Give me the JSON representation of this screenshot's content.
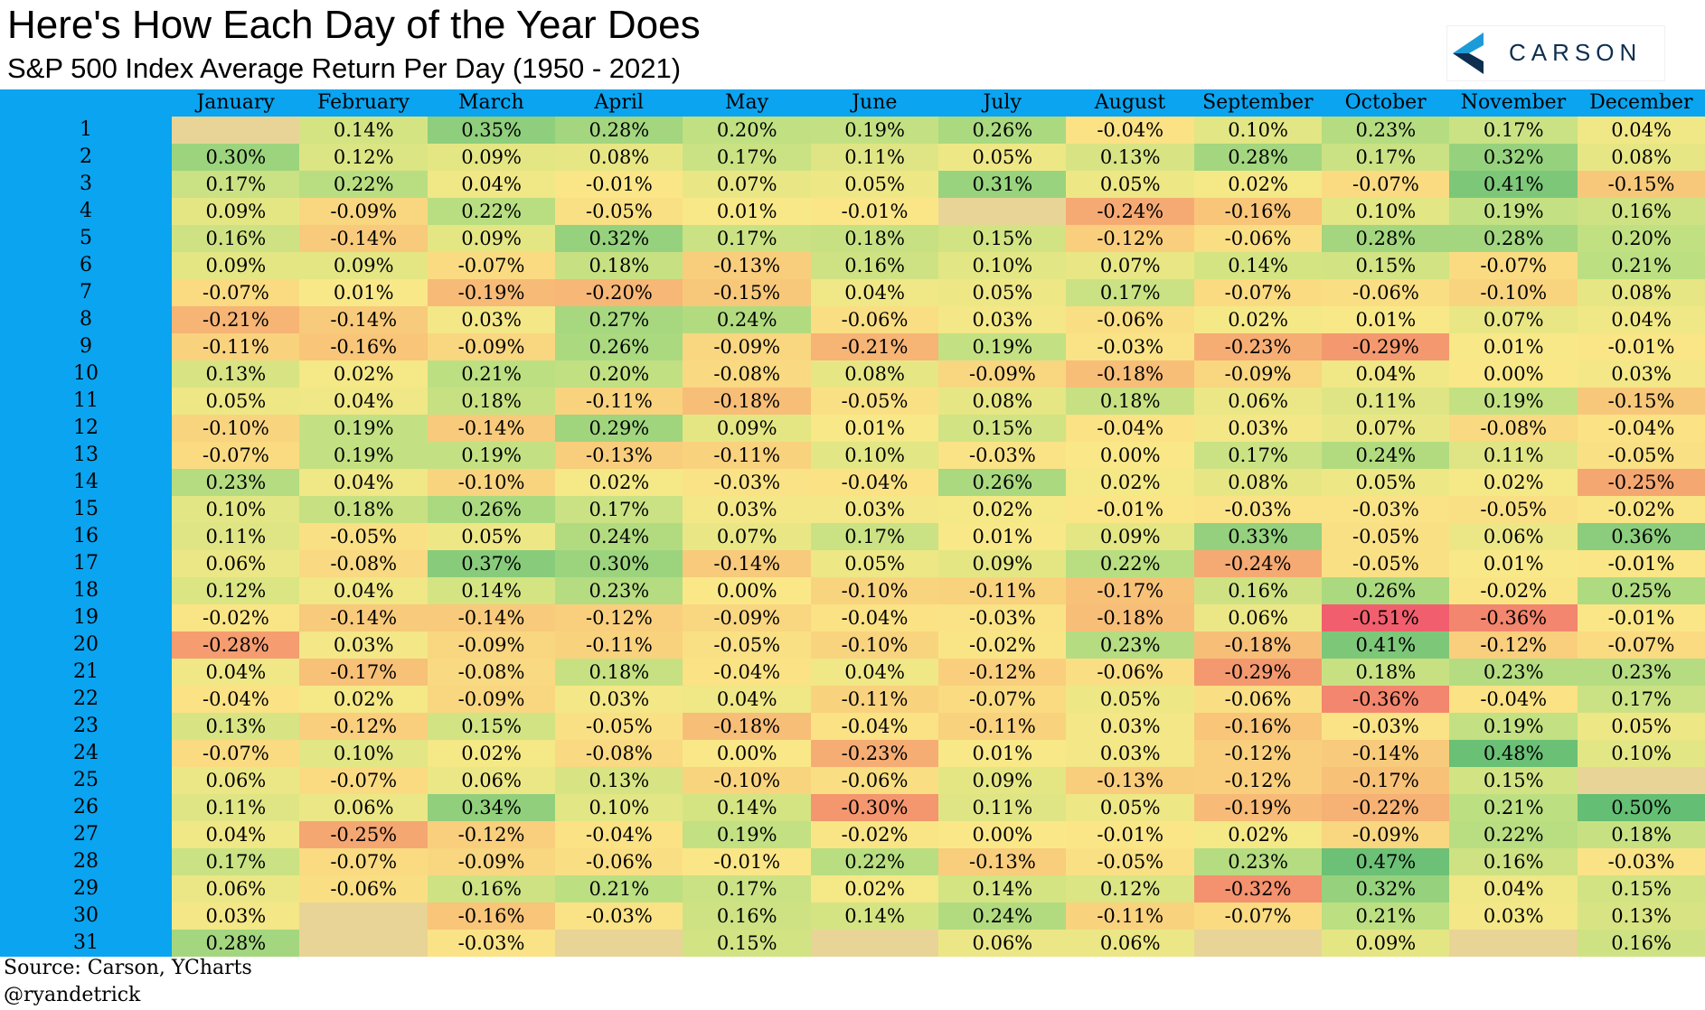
{
  "title": "Here's How Each Day of the Year Does",
  "subtitle": "S&P 500 Index Average Return Per Day (1950 - 2021)",
  "logo": {
    "text": "CARSON",
    "color": "#0e2e4f",
    "accent": "#1d9bd9"
  },
  "source": "Source: Carson, YCharts",
  "handle": "@ryandetrick",
  "chart_data": {
    "type": "heatmap",
    "title": "Here's How Each Day of the Year Does",
    "subtitle": "S&P 500 Index Average Return Per Day (1950 - 2021)",
    "value_unit": "%",
    "header_color": "#0aa4f0",
    "empty_color": "#e8d497",
    "x_categories": [
      "January",
      "February",
      "March",
      "April",
      "May",
      "June",
      "July",
      "August",
      "September",
      "October",
      "November",
      "December"
    ],
    "y_categories": [
      "1",
      "2",
      "3",
      "4",
      "5",
      "6",
      "7",
      "8",
      "9",
      "10",
      "11",
      "12",
      "13",
      "14",
      "15",
      "16",
      "17",
      "18",
      "19",
      "20",
      "21",
      "22",
      "23",
      "24",
      "25",
      "26",
      "27",
      "28",
      "29",
      "30",
      "31"
    ],
    "values": [
      [
        null,
        0.14,
        0.35,
        0.28,
        0.2,
        0.19,
        0.26,
        -0.04,
        0.1,
        0.23,
        0.17,
        0.04
      ],
      [
        0.3,
        0.12,
        0.09,
        0.08,
        0.17,
        0.11,
        0.05,
        0.13,
        0.28,
        0.17,
        0.32,
        0.08
      ],
      [
        0.17,
        0.22,
        0.04,
        -0.01,
        0.07,
        0.05,
        0.31,
        0.05,
        0.02,
        -0.07,
        0.41,
        -0.15
      ],
      [
        0.09,
        -0.09,
        0.22,
        -0.05,
        0.01,
        -0.01,
        null,
        -0.24,
        -0.16,
        0.1,
        0.19,
        0.16
      ],
      [
        0.16,
        -0.14,
        0.09,
        0.32,
        0.17,
        0.18,
        0.15,
        -0.12,
        -0.06,
        0.28,
        0.28,
        0.2
      ],
      [
        0.09,
        0.09,
        -0.07,
        0.18,
        -0.13,
        0.16,
        0.1,
        0.07,
        0.14,
        0.15,
        -0.07,
        0.21
      ],
      [
        -0.07,
        0.01,
        -0.19,
        -0.2,
        -0.15,
        0.04,
        0.05,
        0.17,
        -0.07,
        -0.06,
        -0.1,
        0.08
      ],
      [
        -0.21,
        -0.14,
        0.03,
        0.27,
        0.24,
        -0.06,
        0.03,
        -0.06,
        0.02,
        0.01,
        0.07,
        0.04
      ],
      [
        -0.11,
        -0.16,
        -0.09,
        0.26,
        -0.09,
        -0.21,
        0.19,
        -0.03,
        -0.23,
        -0.29,
        0.01,
        -0.01
      ],
      [
        0.13,
        0.02,
        0.21,
        0.2,
        -0.08,
        0.08,
        -0.09,
        -0.18,
        -0.09,
        0.04,
        0.0,
        0.03
      ],
      [
        0.05,
        0.04,
        0.18,
        -0.11,
        -0.18,
        -0.05,
        0.08,
        0.18,
        0.06,
        0.11,
        0.19,
        -0.15
      ],
      [
        -0.1,
        0.19,
        -0.14,
        0.29,
        0.09,
        0.01,
        0.15,
        -0.04,
        0.03,
        0.07,
        -0.08,
        -0.04
      ],
      [
        -0.07,
        0.19,
        0.19,
        -0.13,
        -0.11,
        0.1,
        -0.03,
        0.0,
        0.17,
        0.24,
        0.11,
        -0.05
      ],
      [
        0.23,
        0.04,
        -0.1,
        0.02,
        -0.03,
        -0.04,
        0.26,
        0.02,
        0.08,
        0.05,
        0.02,
        -0.25
      ],
      [
        0.1,
        0.18,
        0.26,
        0.17,
        0.03,
        0.03,
        0.02,
        -0.01,
        -0.03,
        -0.03,
        -0.05,
        -0.02
      ],
      [
        0.11,
        -0.05,
        0.05,
        0.24,
        0.07,
        0.17,
        0.01,
        0.09,
        0.33,
        -0.05,
        0.06,
        0.36
      ],
      [
        0.06,
        -0.08,
        0.37,
        0.3,
        -0.14,
        0.05,
        0.09,
        0.22,
        -0.24,
        -0.05,
        0.01,
        -0.01
      ],
      [
        0.12,
        0.04,
        0.14,
        0.23,
        0.0,
        -0.1,
        -0.11,
        -0.17,
        0.16,
        0.26,
        -0.02,
        0.25
      ],
      [
        -0.02,
        -0.14,
        -0.14,
        -0.12,
        -0.09,
        -0.04,
        -0.03,
        -0.18,
        0.06,
        -0.51,
        -0.36,
        -0.01
      ],
      [
        -0.28,
        0.03,
        -0.09,
        -0.11,
        -0.05,
        -0.1,
        -0.02,
        0.23,
        -0.18,
        0.41,
        -0.12,
        -0.07
      ],
      [
        0.04,
        -0.17,
        -0.08,
        0.18,
        -0.04,
        0.04,
        -0.12,
        -0.06,
        -0.29,
        0.18,
        0.23,
        0.23
      ],
      [
        -0.04,
        0.02,
        -0.09,
        0.03,
        0.04,
        -0.11,
        -0.07,
        0.05,
        -0.06,
        -0.36,
        -0.04,
        0.17
      ],
      [
        0.13,
        -0.12,
        0.15,
        -0.05,
        -0.18,
        -0.04,
        -0.11,
        0.03,
        -0.16,
        -0.03,
        0.19,
        0.05
      ],
      [
        -0.07,
        0.1,
        0.02,
        -0.08,
        0.0,
        -0.23,
        0.01,
        0.03,
        -0.12,
        -0.14,
        0.48,
        0.1
      ],
      [
        0.06,
        -0.07,
        0.06,
        0.13,
        -0.1,
        -0.06,
        0.09,
        -0.13,
        -0.12,
        -0.17,
        0.15,
        null
      ],
      [
        0.11,
        0.06,
        0.34,
        0.1,
        0.14,
        -0.3,
        0.11,
        0.05,
        -0.19,
        -0.22,
        0.21,
        0.5
      ],
      [
        0.04,
        -0.25,
        -0.12,
        -0.04,
        0.19,
        -0.02,
        0.0,
        -0.01,
        0.02,
        -0.09,
        0.22,
        0.18
      ],
      [
        0.17,
        -0.07,
        -0.09,
        -0.06,
        -0.01,
        0.22,
        -0.13,
        -0.05,
        0.23,
        0.47,
        0.16,
        -0.03
      ],
      [
        0.06,
        -0.06,
        0.16,
        0.21,
        0.17,
        0.02,
        0.14,
        0.12,
        -0.32,
        0.32,
        0.04,
        0.15
      ],
      [
        0.03,
        null,
        -0.16,
        -0.03,
        0.16,
        0.14,
        0.24,
        -0.11,
        -0.07,
        0.21,
        0.03,
        0.13
      ],
      [
        0.28,
        null,
        -0.03,
        null,
        0.15,
        null,
        0.06,
        0.06,
        null,
        0.09,
        null,
        0.16
      ]
    ]
  }
}
